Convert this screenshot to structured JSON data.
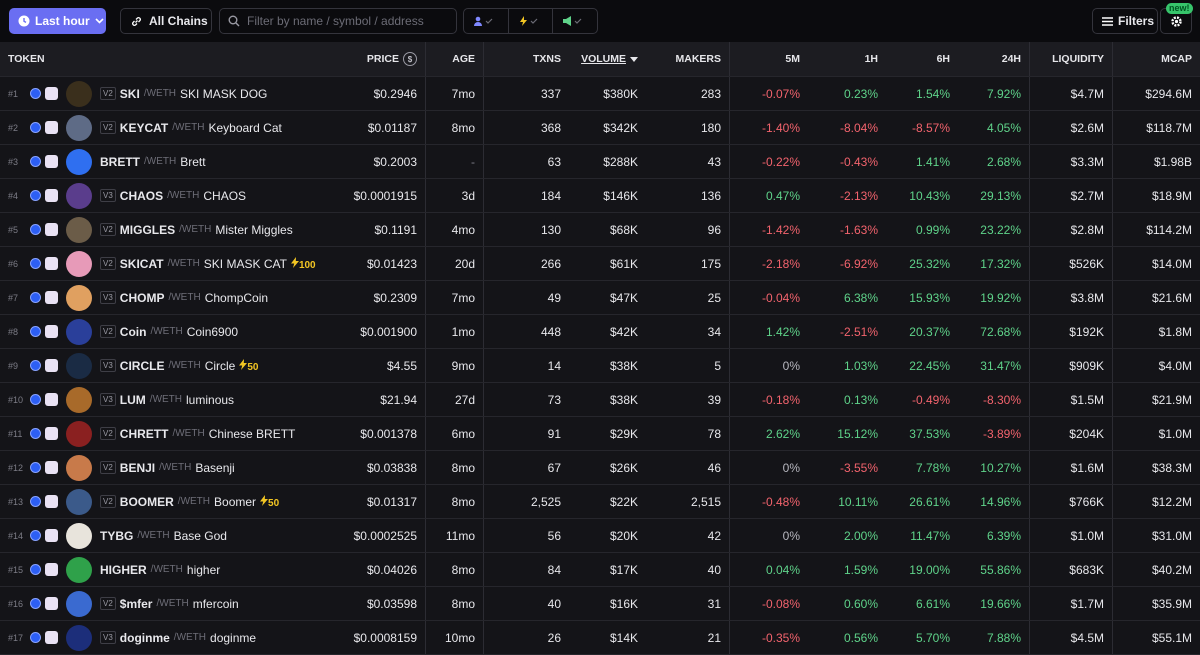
{
  "toolbar": {
    "time_filter": "Last hour",
    "chains": "All Chains",
    "search_placeholder": "Filter by name / symbol / address",
    "filters": "Filters",
    "new_badge": "new!"
  },
  "table": {
    "columns": [
      "TOKEN",
      "PRICE",
      "AGE",
      "TXNS",
      "VOLUME",
      "MAKERS",
      "5M",
      "1H",
      "6H",
      "24H",
      "LIQUIDITY",
      "MCAP"
    ],
    "price_unit": "$",
    "rows": [
      {
        "rank": "#1",
        "version": "V2",
        "symbol": "SKI",
        "quote": "/WETH",
        "name": "SKI MASK DOG",
        "price": "$0.2946",
        "age": "7mo",
        "txns": "337",
        "volume": "$380K",
        "makers": "283",
        "m5": "-0.07%",
        "h1": "0.23%",
        "h6": "1.54%",
        "h24": "7.92%",
        "liquidity": "$4.7M",
        "mcap": "$294.6M"
      },
      {
        "rank": "#2",
        "version": "V2",
        "symbol": "KEYCAT",
        "quote": "/WETH",
        "name": "Keyboard Cat",
        "price": "$0.01187",
        "age": "8mo",
        "txns": "368",
        "volume": "$342K",
        "makers": "180",
        "m5": "-1.40%",
        "h1": "-8.04%",
        "h6": "-8.57%",
        "h24": "4.05%",
        "liquidity": "$2.6M",
        "mcap": "$118.7M"
      },
      {
        "rank": "#3",
        "symbol": "BRETT",
        "quote": "/WETH",
        "name": "Brett",
        "price": "$0.2003",
        "age": "-",
        "txns": "63",
        "volume": "$288K",
        "makers": "43",
        "m5": "-0.22%",
        "h1": "-0.43%",
        "h6": "1.41%",
        "h24": "2.68%",
        "liquidity": "$3.3M",
        "mcap": "$1.98B"
      },
      {
        "rank": "#4",
        "version": "V3",
        "symbol": "CHAOS",
        "quote": "/WETH",
        "name": "CHAOS",
        "price": "$0.0001915",
        "age": "3d",
        "txns": "184",
        "volume": "$146K",
        "makers": "136",
        "m5": "0.47%",
        "h1": "-2.13%",
        "h6": "10.43%",
        "h24": "29.13%",
        "liquidity": "$2.7M",
        "mcap": "$18.9M"
      },
      {
        "rank": "#5",
        "version": "V2",
        "symbol": "MIGGLES",
        "quote": "/WETH",
        "name": "Mister Miggles",
        "price": "$0.1191",
        "age": "4mo",
        "txns": "130",
        "volume": "$68K",
        "makers": "96",
        "m5": "-1.42%",
        "h1": "-1.63%",
        "h6": "0.99%",
        "h24": "23.22%",
        "liquidity": "$2.8M",
        "mcap": "$114.2M"
      },
      {
        "rank": "#6",
        "version": "V2",
        "symbol": "SKICAT",
        "quote": "/WETH",
        "name": "SKI MASK CAT",
        "boost": "100",
        "price": "$0.01423",
        "age": "20d",
        "txns": "266",
        "volume": "$61K",
        "makers": "175",
        "m5": "-2.18%",
        "h1": "-6.92%",
        "h6": "25.32%",
        "h24": "17.32%",
        "liquidity": "$526K",
        "mcap": "$14.0M"
      },
      {
        "rank": "#7",
        "version": "V3",
        "symbol": "CHOMP",
        "quote": "/WETH",
        "name": "ChompCoin",
        "price": "$0.2309",
        "age": "7mo",
        "txns": "49",
        "volume": "$47K",
        "makers": "25",
        "m5": "-0.04%",
        "h1": "6.38%",
        "h6": "15.93%",
        "h24": "19.92%",
        "liquidity": "$3.8M",
        "mcap": "$21.6M"
      },
      {
        "rank": "#8",
        "version": "V2",
        "symbol": "Coin",
        "quote": "/WETH",
        "name": "Coin6900",
        "price": "$0.001900",
        "age": "1mo",
        "txns": "448",
        "volume": "$42K",
        "makers": "34",
        "m5": "1.42%",
        "h1": "-2.51%",
        "h6": "20.37%",
        "h24": "72.68%",
        "liquidity": "$192K",
        "mcap": "$1.8M"
      },
      {
        "rank": "#9",
        "version": "V3",
        "symbol": "CIRCLE",
        "quote": "/WETH",
        "name": "Circle",
        "boost": "50",
        "price": "$4.55",
        "age": "9mo",
        "txns": "14",
        "volume": "$38K",
        "makers": "5",
        "m5": "0%",
        "h1": "1.03%",
        "h6": "22.45%",
        "h24": "31.47%",
        "liquidity": "$909K",
        "mcap": "$4.0M"
      },
      {
        "rank": "#10",
        "version": "V3",
        "symbol": "LUM",
        "quote": "/WETH",
        "name": "luminous",
        "price": "$21.94",
        "age": "27d",
        "txns": "73",
        "volume": "$38K",
        "makers": "39",
        "m5": "-0.18%",
        "h1": "0.13%",
        "h6": "-0.49%",
        "h24": "-8.30%",
        "liquidity": "$1.5M",
        "mcap": "$21.9M"
      },
      {
        "rank": "#11",
        "version": "V2",
        "symbol": "CHRETT",
        "quote": "/WETH",
        "name": "Chinese BRETT",
        "price": "$0.001378",
        "age": "6mo",
        "txns": "91",
        "volume": "$29K",
        "makers": "78",
        "m5": "2.62%",
        "h1": "15.12%",
        "h6": "37.53%",
        "h24": "-3.89%",
        "liquidity": "$204K",
        "mcap": "$1.0M"
      },
      {
        "rank": "#12",
        "version": "V2",
        "symbol": "BENJI",
        "quote": "/WETH",
        "name": "Basenji",
        "price": "$0.03838",
        "age": "8mo",
        "txns": "67",
        "volume": "$26K",
        "makers": "46",
        "m5": "0%",
        "h1": "-3.55%",
        "h6": "7.78%",
        "h24": "10.27%",
        "liquidity": "$1.6M",
        "mcap": "$38.3M"
      },
      {
        "rank": "#13",
        "version": "V2",
        "symbol": "BOOMER",
        "quote": "/WETH",
        "name": "Boomer",
        "boost": "50",
        "price": "$0.01317",
        "age": "8mo",
        "txns": "2,525",
        "volume": "$22K",
        "makers": "2,515",
        "m5": "-0.48%",
        "h1": "10.11%",
        "h6": "26.61%",
        "h24": "14.96%",
        "liquidity": "$766K",
        "mcap": "$12.2M"
      },
      {
        "rank": "#14",
        "symbol": "TYBG",
        "quote": "/WETH",
        "name": "Base God",
        "price": "$0.0002525",
        "age": "11mo",
        "txns": "56",
        "volume": "$20K",
        "makers": "42",
        "m5": "0%",
        "h1": "2.00%",
        "h6": "11.47%",
        "h24": "6.39%",
        "liquidity": "$1.0M",
        "mcap": "$31.0M"
      },
      {
        "rank": "#15",
        "symbol": "HIGHER",
        "quote": "/WETH",
        "name": "higher",
        "price": "$0.04026",
        "age": "8mo",
        "txns": "84",
        "volume": "$17K",
        "makers": "40",
        "m5": "0.04%",
        "h1": "1.59%",
        "h6": "19.00%",
        "h24": "55.86%",
        "liquidity": "$683K",
        "mcap": "$40.2M"
      },
      {
        "rank": "#16",
        "version": "V2",
        "symbol": "$mfer",
        "quote": "/WETH",
        "name": "mfercoin",
        "price": "$0.03598",
        "age": "8mo",
        "txns": "40",
        "volume": "$16K",
        "makers": "31",
        "m5": "-0.08%",
        "h1": "0.60%",
        "h6": "6.61%",
        "h24": "19.66%",
        "liquidity": "$1.7M",
        "mcap": "$35.9M"
      },
      {
        "rank": "#17",
        "version": "V3",
        "symbol": "doginme",
        "quote": "/WETH",
        "name": "doginme",
        "price": "$0.0008159",
        "age": "10mo",
        "txns": "26",
        "volume": "$14K",
        "makers": "21",
        "m5": "-0.35%",
        "h1": "0.56%",
        "h6": "5.70%",
        "h24": "7.88%",
        "liquidity": "$4.5M",
        "mcap": "$55.1M"
      }
    ]
  }
}
